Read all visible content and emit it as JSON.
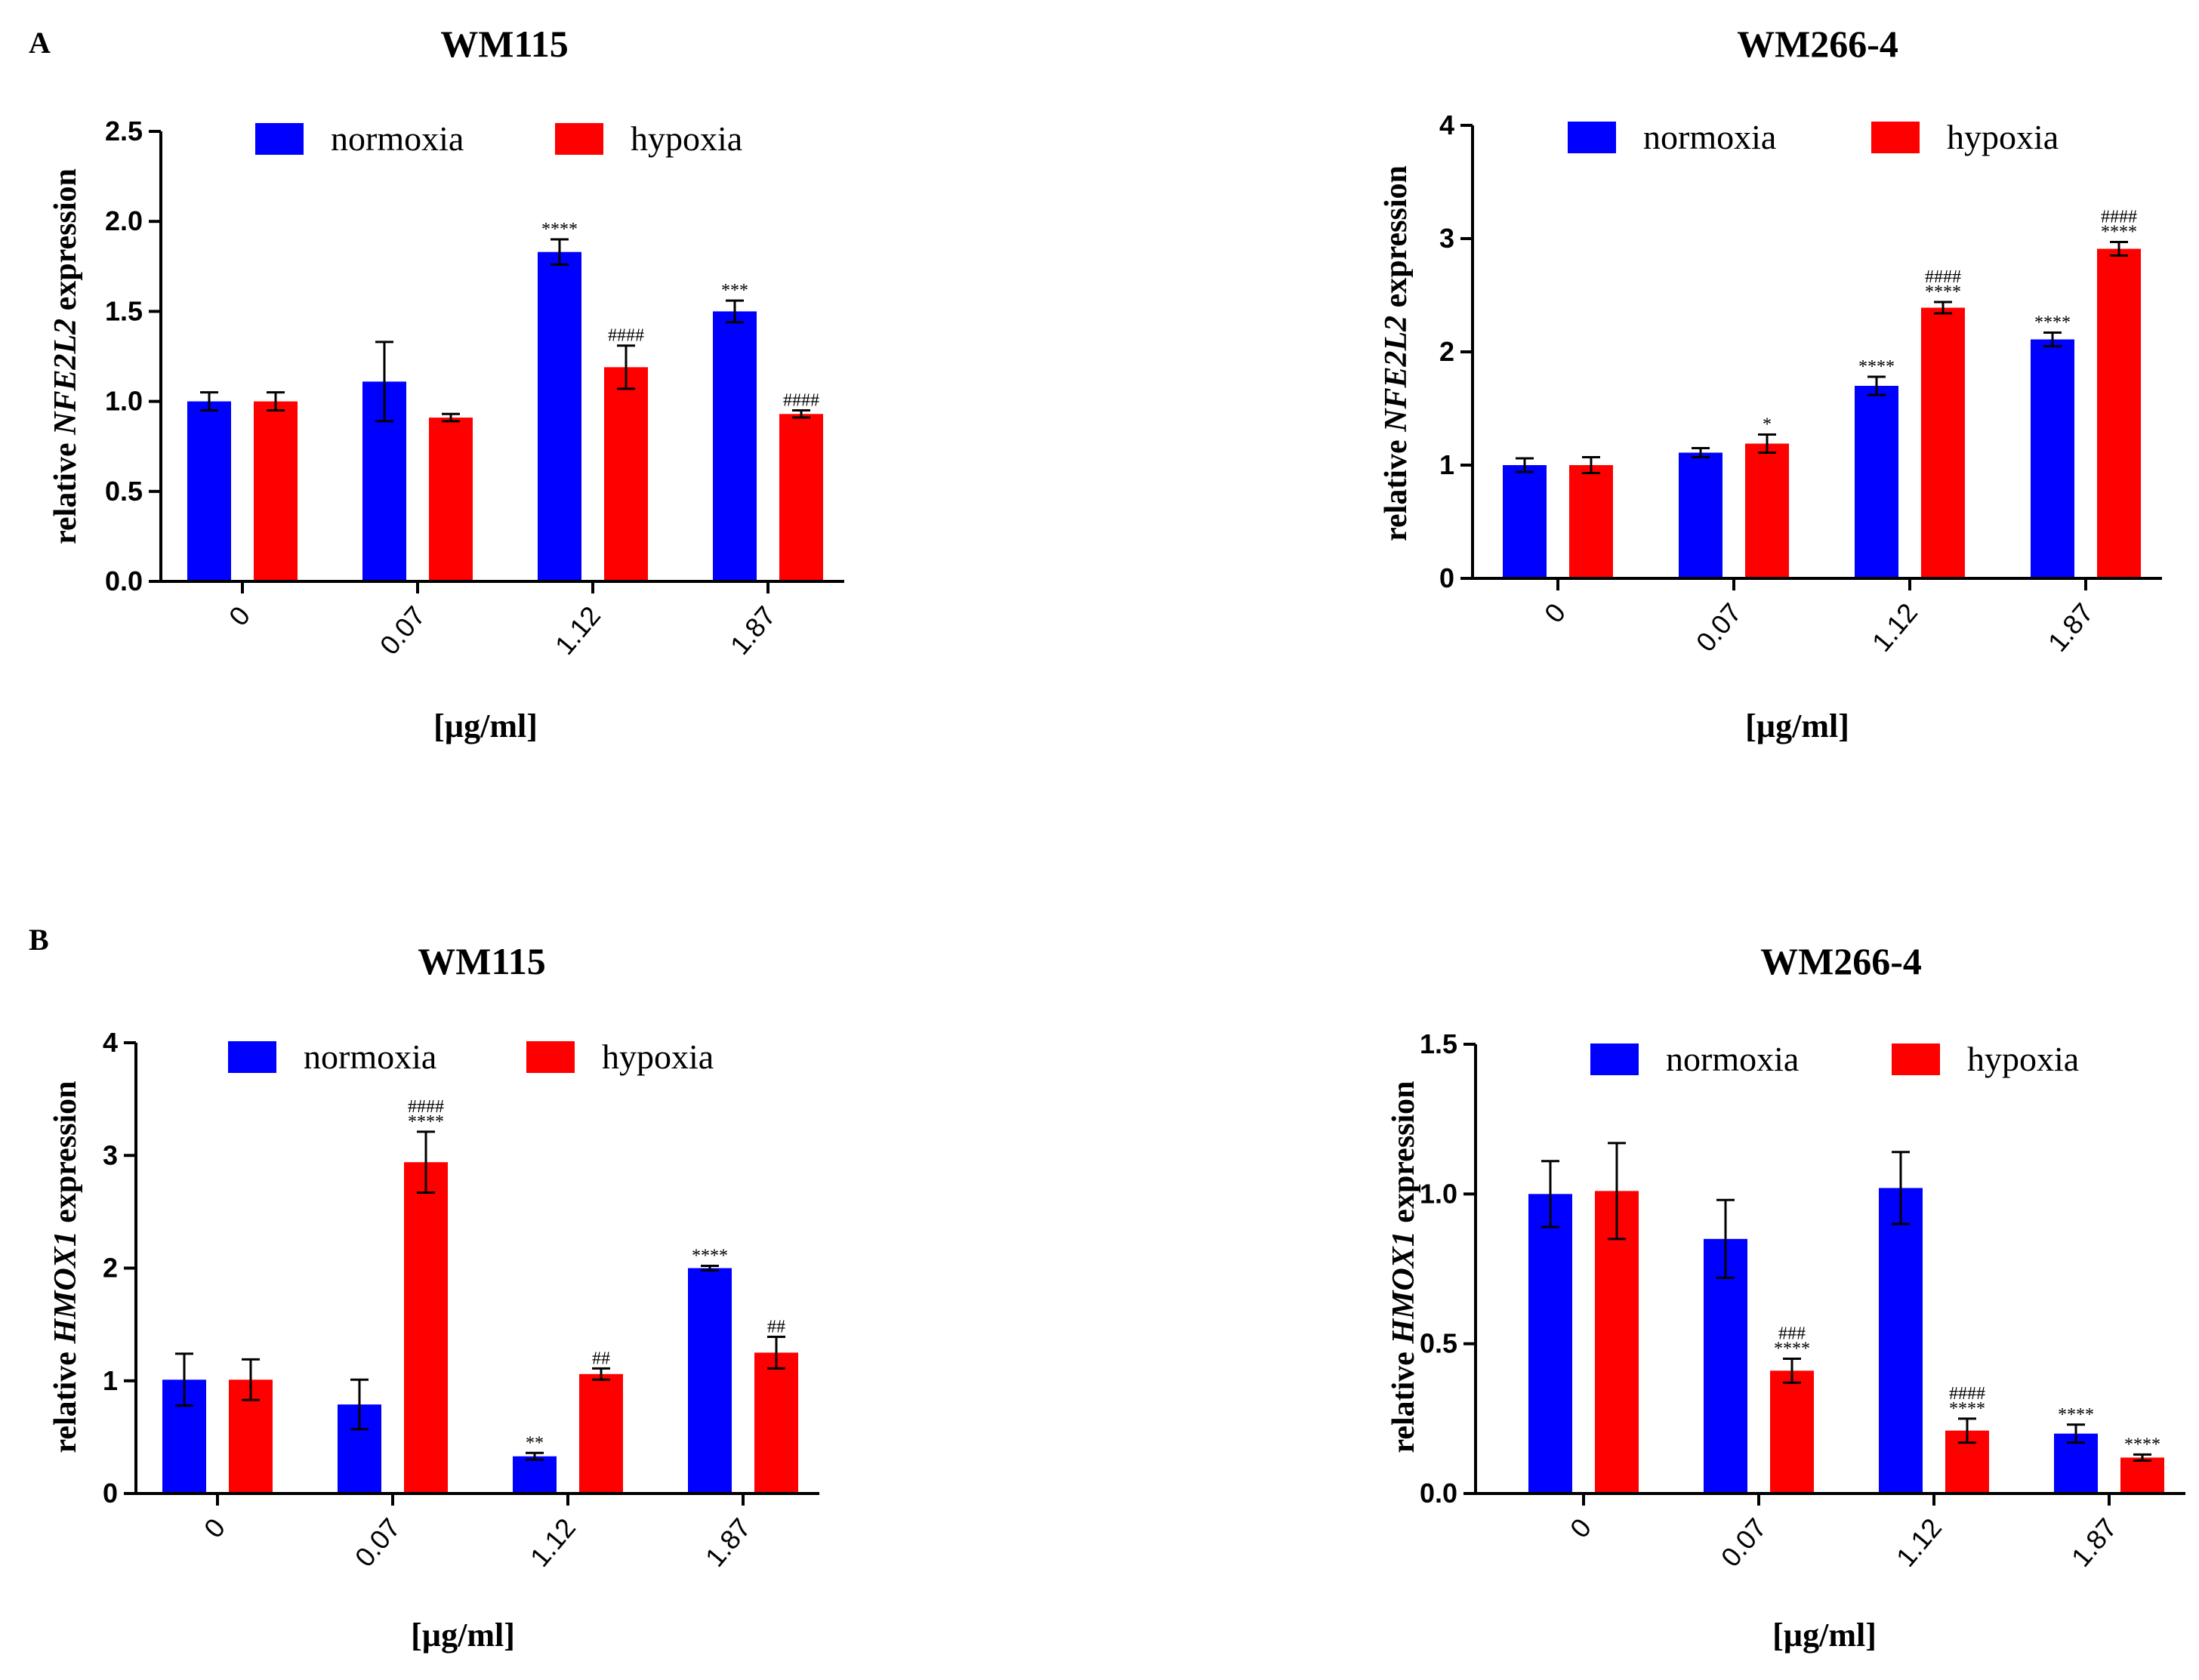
{
  "panel_labels": [
    "A",
    "B"
  ],
  "legend": {
    "normoxia": "normoxia",
    "hypoxia": "hypoxia"
  },
  "colors": {
    "normoxia": "#0000ff",
    "hypoxia": "#ff0000"
  },
  "chart_data": [
    {
      "type": "bar",
      "panel": "A",
      "title": "WM115",
      "ylabel_prefix": "relative ",
      "ylabel_gene": "NFE2L2",
      "ylabel_suffix": " expression",
      "xlabel": "[µg/ml]",
      "categories": [
        "0",
        "0.07",
        "1.12",
        "1.87"
      ],
      "ylim": [
        0,
        2.5
      ],
      "yticks": [
        0.0,
        0.5,
        1.0,
        1.5,
        2.0,
        2.5
      ],
      "ytick_labels": [
        "0.0",
        "0.5",
        "1.0",
        "1.5",
        "2.0",
        "2.5"
      ],
      "series": [
        {
          "name": "normoxia",
          "values": [
            1.0,
            1.11,
            1.83,
            1.5
          ],
          "errors": [
            0.05,
            0.22,
            0.07,
            0.06
          ],
          "sig_top": [
            "",
            "",
            "****",
            "***"
          ],
          "sig_bottom": [
            "",
            "",
            "",
            ""
          ]
        },
        {
          "name": "hypoxia",
          "values": [
            1.0,
            0.91,
            1.19,
            0.93
          ],
          "errors": [
            0.05,
            0.02,
            0.12,
            0.02
          ],
          "sig_top": [
            "",
            "",
            "####",
            "####"
          ],
          "sig_bottom": [
            "",
            "",
            "",
            ""
          ]
        }
      ]
    },
    {
      "type": "bar",
      "panel": "A",
      "title": "WM266-4",
      "ylabel_prefix": "relative ",
      "ylabel_gene": "NFE2L2",
      "ylabel_suffix": " expression",
      "xlabel": "[µg/ml]",
      "categories": [
        "0",
        "0.07",
        "1.12",
        "1.87"
      ],
      "ylim": [
        0,
        4
      ],
      "yticks": [
        0,
        1,
        2,
        3,
        4
      ],
      "ytick_labels": [
        "0",
        "1",
        "2",
        "3",
        "4"
      ],
      "series": [
        {
          "name": "normoxia",
          "values": [
            1.0,
            1.11,
            1.7,
            2.11
          ],
          "errors": [
            0.06,
            0.04,
            0.08,
            0.06
          ],
          "sig_top": [
            "",
            "",
            "****",
            "****"
          ],
          "sig_bottom": [
            "",
            "",
            "",
            ""
          ]
        },
        {
          "name": "hypoxia",
          "values": [
            1.0,
            1.19,
            2.39,
            2.91
          ],
          "errors": [
            0.07,
            0.08,
            0.05,
            0.06
          ],
          "sig_top": [
            "",
            "*",
            "####",
            "####"
          ],
          "sig_bottom": [
            "",
            "",
            "****",
            "****"
          ]
        }
      ]
    },
    {
      "type": "bar",
      "panel": "B",
      "title": "WM115",
      "ylabel_prefix": "relative ",
      "ylabel_gene": "HMOX1",
      "ylabel_suffix": " expression",
      "xlabel": "[µg/ml]",
      "categories": [
        "0",
        "0.07",
        "1.12",
        "1.87"
      ],
      "ylim": [
        0,
        4
      ],
      "yticks": [
        0,
        1,
        2,
        3,
        4
      ],
      "ytick_labels": [
        "0",
        "1",
        "2",
        "3",
        "4"
      ],
      "series": [
        {
          "name": "normoxia",
          "values": [
            1.01,
            0.79,
            0.33,
            2.0
          ],
          "errors": [
            0.23,
            0.22,
            0.03,
            0.02
          ],
          "sig_top": [
            "",
            "",
            "**",
            "****"
          ],
          "sig_bottom": [
            "",
            "",
            "",
            ""
          ]
        },
        {
          "name": "hypoxia",
          "values": [
            1.01,
            2.94,
            1.06,
            1.25
          ],
          "errors": [
            0.18,
            0.27,
            0.05,
            0.14
          ],
          "sig_top": [
            "",
            "####",
            "##",
            "##"
          ],
          "sig_bottom": [
            "",
            "****",
            "",
            ""
          ]
        }
      ]
    },
    {
      "type": "bar",
      "panel": "B",
      "title": "WM266-4",
      "ylabel_prefix": "relative ",
      "ylabel_gene": "HMOX1",
      "ylabel_suffix": " expression",
      "xlabel": "[µg/ml]",
      "categories": [
        "0",
        "0.07",
        "1.12",
        "1.87"
      ],
      "ylim": [
        0,
        1.5
      ],
      "yticks": [
        0.0,
        0.5,
        1.0,
        1.5
      ],
      "ytick_labels": [
        "0.0",
        "0.5",
        "1.0",
        "1.5"
      ],
      "series": [
        {
          "name": "normoxia",
          "values": [
            1.0,
            0.85,
            1.02,
            0.2
          ],
          "errors": [
            0.11,
            0.13,
            0.12,
            0.03
          ],
          "sig_top": [
            "",
            "",
            "",
            "****"
          ],
          "sig_bottom": [
            "",
            "",
            "",
            ""
          ]
        },
        {
          "name": "hypoxia",
          "values": [
            1.01,
            0.41,
            0.21,
            0.12
          ],
          "errors": [
            0.16,
            0.04,
            0.04,
            0.01
          ],
          "sig_top": [
            "",
            "###",
            "####",
            "****"
          ],
          "sig_bottom": [
            "",
            "****",
            "****",
            ""
          ]
        }
      ]
    }
  ]
}
